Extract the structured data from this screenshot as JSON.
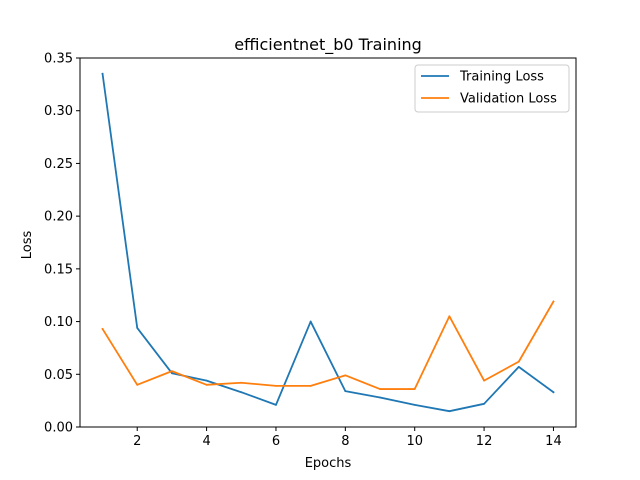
{
  "chart_data": {
    "type": "line",
    "title": "efficientnet_b0 Training",
    "xlabel": "Epochs",
    "ylabel": "Loss",
    "x": [
      1,
      2,
      3,
      4,
      5,
      6,
      7,
      8,
      9,
      10,
      11,
      12,
      13,
      14
    ],
    "xlim": [
      0.35,
      14.65
    ],
    "ylim": [
      0,
      0.35
    ],
    "xticks": [
      2,
      4,
      6,
      8,
      10,
      12,
      14
    ],
    "yticks": [
      "0.00",
      "0.05",
      "0.10",
      "0.15",
      "0.20",
      "0.25",
      "0.30",
      "0.35"
    ],
    "grid": false,
    "legend_position": "top-right",
    "series": [
      {
        "name": "Training Loss",
        "color": "#1f77b4",
        "values": [
          0.335,
          0.094,
          0.051,
          0.044,
          0.033,
          0.021,
          0.1,
          0.034,
          0.028,
          0.021,
          0.015,
          0.022,
          0.057,
          0.033
        ]
      },
      {
        "name": "Validation Loss",
        "color": "#ff7f0e",
        "values": [
          0.093,
          0.04,
          0.053,
          0.04,
          0.042,
          0.039,
          0.039,
          0.049,
          0.036,
          0.036,
          0.105,
          0.044,
          0.062,
          0.119
        ]
      }
    ]
  }
}
